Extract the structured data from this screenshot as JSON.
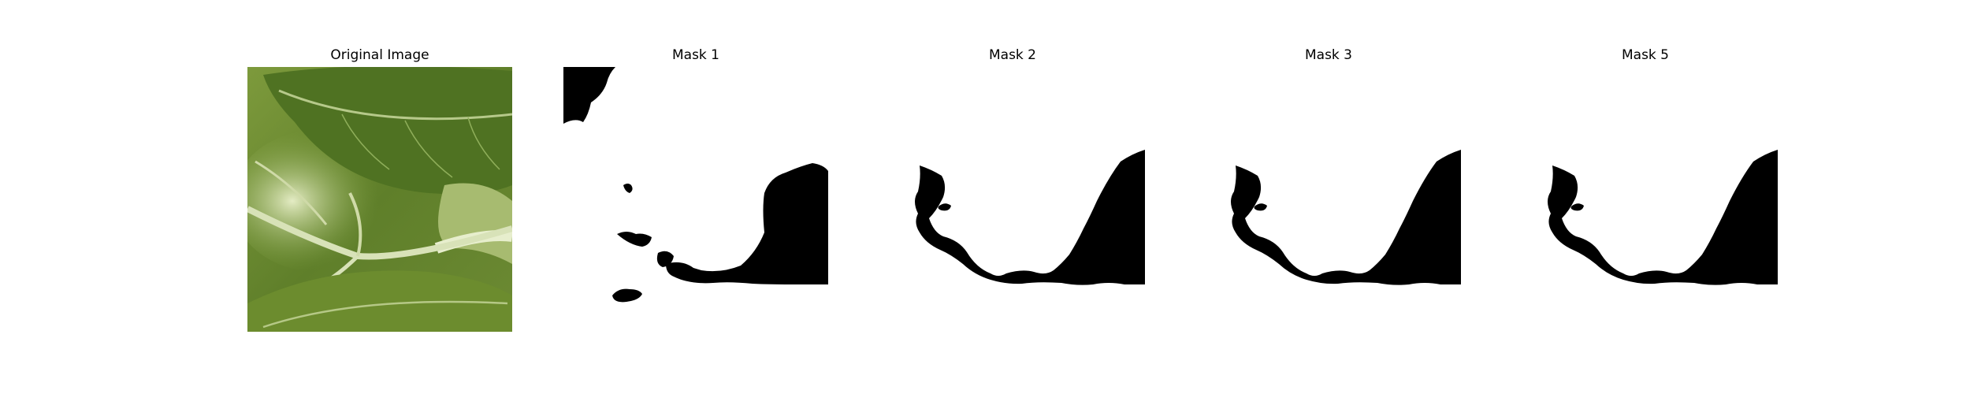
{
  "panels": [
    {
      "title": "Original Image",
      "kind": "photo",
      "icon": "leaf-photo"
    },
    {
      "title": "Mask 1",
      "kind": "mask",
      "icon": "mask-image"
    },
    {
      "title": "Mask 2",
      "kind": "mask",
      "icon": "mask-image"
    },
    {
      "title": "Mask 3",
      "kind": "mask",
      "icon": "mask-image"
    },
    {
      "title": "Mask 5",
      "kind": "mask",
      "icon": "mask-image"
    }
  ],
  "colors": {
    "background": "#ffffff",
    "mask_fill": "#000000",
    "leaf_dark": "#4a6b20",
    "leaf_mid": "#6f8f34",
    "leaf_light": "#c9d6a4",
    "vein": "#d8e2b8"
  }
}
